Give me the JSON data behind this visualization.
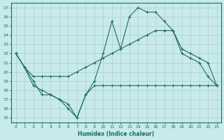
{
  "xlabel": "Humidex (Indice chaleur)",
  "background_color": "#c8eaea",
  "grid_color": "#b0cccc",
  "line_color": "#1a6b6b",
  "xlim": [
    -0.5,
    23.5
  ],
  "ylim": [
    14.5,
    27.5
  ],
  "xticks": [
    0,
    1,
    2,
    3,
    4,
    5,
    6,
    7,
    8,
    9,
    10,
    11,
    12,
    13,
    14,
    15,
    16,
    17,
    18,
    19,
    20,
    21,
    22,
    23
  ],
  "yticks": [
    15,
    16,
    17,
    18,
    19,
    20,
    21,
    22,
    23,
    24,
    25,
    26,
    27
  ],
  "series": [
    {
      "x": [
        0,
        1,
        2,
        3,
        4,
        5,
        6,
        7,
        8,
        9,
        10,
        11,
        12,
        13,
        14,
        15,
        16,
        17,
        18,
        19,
        20,
        21,
        22,
        23
      ],
      "y": [
        22.0,
        20.5,
        19.0,
        17.5,
        17.5,
        17.0,
        16.5,
        15.0,
        17.5,
        19.0,
        22.0,
        25.5,
        22.5,
        26.0,
        27.0,
        26.5,
        26.5,
        25.5,
        24.5,
        22.0,
        21.5,
        21.0,
        19.5,
        18.5
      ]
    },
    {
      "x": [
        0,
        1,
        2,
        3,
        4,
        5,
        6,
        7,
        8,
        9,
        10,
        11,
        12,
        13,
        14,
        15,
        16,
        17,
        18,
        19,
        20,
        21,
        22,
        23
      ],
      "y": [
        22.0,
        20.5,
        19.5,
        19.5,
        19.5,
        19.5,
        19.5,
        20.0,
        20.5,
        21.0,
        21.5,
        22.0,
        22.5,
        23.0,
        23.5,
        24.0,
        24.5,
        24.5,
        24.5,
        22.5,
        22.0,
        21.5,
        21.0,
        18.5
      ]
    },
    {
      "x": [
        0,
        1,
        2,
        3,
        4,
        5,
        6,
        7,
        8,
        9,
        10,
        11,
        12,
        13,
        14,
        15,
        16,
        17,
        18,
        19,
        20,
        21,
        22,
        23
      ],
      "y": [
        22.0,
        20.5,
        18.5,
        18.0,
        17.5,
        17.0,
        16.0,
        15.0,
        17.5,
        18.5,
        18.5,
        18.5,
        18.5,
        18.5,
        18.5,
        18.5,
        18.5,
        18.5,
        18.5,
        18.5,
        18.5,
        18.5,
        18.5,
        18.5
      ]
    }
  ]
}
